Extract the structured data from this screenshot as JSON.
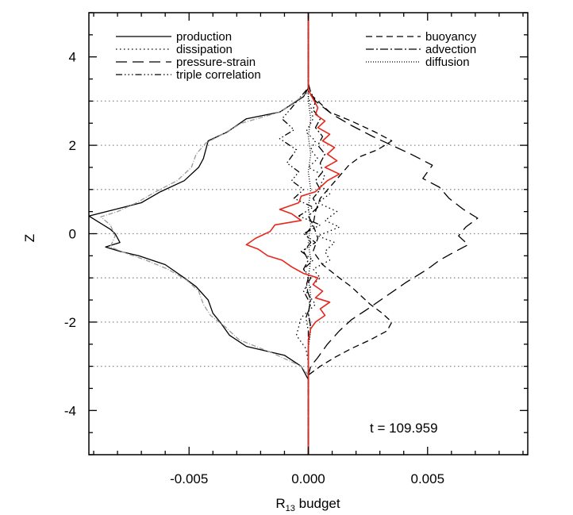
{
  "chart_data": {
    "type": "line",
    "xlabel": "R",
    "xlabel_sub": "13",
    "xlabel_rest": " budget",
    "ylabel": "Z",
    "xlim": [
      -0.0092,
      0.0092
    ],
    "ylim": [
      -5,
      5
    ],
    "x_tick_labels": [
      {
        "value": -0.005,
        "label": "-0.005"
      },
      {
        "value": 0.0,
        "label": "0.000"
      },
      {
        "value": 0.005,
        "label": "0.005"
      }
    ],
    "y_tick_labels": [
      {
        "value": -4,
        "label": "-4"
      },
      {
        "value": -2,
        "label": "-2"
      },
      {
        "value": 0,
        "label": "0"
      },
      {
        "value": 2,
        "label": "2"
      },
      {
        "value": 4,
        "label": "4"
      }
    ],
    "hlines": [
      -3,
      -2,
      -1,
      0,
      1,
      2,
      3
    ],
    "annotation": "t = 109.959",
    "legend_left": [
      "production",
      "dissipation",
      "pressure-strain",
      "triple correlation"
    ],
    "legend_right": [
      "buoyancy",
      "advection",
      "diffusion"
    ],
    "series": [
      {
        "name": "production",
        "color": "#000000",
        "dash": "solid",
        "points": [
          [
            0,
            5
          ],
          [
            0,
            3.3
          ],
          [
            -0.0002,
            3.1
          ],
          [
            -0.0012,
            2.75
          ],
          [
            -0.0026,
            2.6
          ],
          [
            -0.0034,
            2.3
          ],
          [
            -0.0042,
            2.1
          ],
          [
            -0.0043,
            1.9
          ],
          [
            -0.0044,
            1.7
          ],
          [
            -0.0046,
            1.5
          ],
          [
            -0.0052,
            1.2
          ],
          [
            -0.0062,
            0.95
          ],
          [
            -0.007,
            0.7
          ],
          [
            -0.0081,
            0.55
          ],
          [
            -0.0092,
            0.4
          ],
          [
            -0.0089,
            0.3
          ],
          [
            -0.0083,
            0.1
          ],
          [
            -0.0081,
            0.0
          ],
          [
            -0.0079,
            -0.2
          ],
          [
            -0.0085,
            -0.3
          ],
          [
            -0.0079,
            -0.4
          ],
          [
            -0.0071,
            -0.5
          ],
          [
            -0.006,
            -0.7
          ],
          [
            -0.0052,
            -1.0
          ],
          [
            -0.0047,
            -1.2
          ],
          [
            -0.0042,
            -1.5
          ],
          [
            -0.004,
            -1.8
          ],
          [
            -0.0037,
            -2.0
          ],
          [
            -0.0033,
            -2.3
          ],
          [
            -0.0026,
            -2.55
          ],
          [
            -0.001,
            -2.75
          ],
          [
            -0.0003,
            -3.0
          ],
          [
            0,
            -3.3
          ],
          [
            0,
            -5
          ]
        ]
      },
      {
        "name": "dissipation",
        "color": "#000000",
        "dash": "1.5,3.5",
        "points": [
          [
            0,
            5
          ],
          [
            0,
            3.1
          ],
          [
            0.0001,
            2.9
          ],
          [
            0.0002,
            2.6
          ],
          [
            -0.0001,
            2.3
          ],
          [
            0.0003,
            2.1
          ],
          [
            0.0001,
            1.9
          ],
          [
            0.0004,
            1.7
          ],
          [
            0,
            1.5
          ],
          [
            0.0007,
            1.3
          ],
          [
            0.0005,
            1.1
          ],
          [
            0.0009,
            0.9
          ],
          [
            0.0004,
            0.7
          ],
          [
            0.0012,
            0.5
          ],
          [
            0.0007,
            0.3
          ],
          [
            0.0013,
            0.15
          ],
          [
            0.0004,
            -0.05
          ],
          [
            0.0011,
            -0.2
          ],
          [
            0.0007,
            -0.4
          ],
          [
            0.0009,
            -0.6
          ],
          [
            0.0002,
            -0.8
          ],
          [
            0.0005,
            -1.0
          ],
          [
            -0.0001,
            -1.3
          ],
          [
            0.0003,
            -1.6
          ],
          [
            -0.0003,
            -1.9
          ],
          [
            -0.0004,
            -2.1
          ],
          [
            -0.0005,
            -2.3
          ],
          [
            -0.0001,
            -2.6
          ],
          [
            0,
            -2.9
          ],
          [
            0,
            -3.1
          ],
          [
            0,
            -5
          ]
        ]
      },
      {
        "name": "pressure-strain",
        "color": "#000000",
        "dash": "14,7",
        "points": [
          [
            0,
            5
          ],
          [
            0,
            3.2
          ],
          [
            0.0003,
            3.0
          ],
          [
            0.001,
            2.7
          ],
          [
            0.0018,
            2.45
          ],
          [
            0.0027,
            2.2
          ],
          [
            0.0035,
            2.0
          ],
          [
            0.0043,
            1.8
          ],
          [
            0.0052,
            1.55
          ],
          [
            0.0048,
            1.25
          ],
          [
            0.0055,
            1.05
          ],
          [
            0.0059,
            0.8
          ],
          [
            0.0065,
            0.55
          ],
          [
            0.0071,
            0.35
          ],
          [
            0.0066,
            0.15
          ],
          [
            0.0063,
            -0.05
          ],
          [
            0.0067,
            -0.25
          ],
          [
            0.006,
            -0.45
          ],
          [
            0.0055,
            -0.6
          ],
          [
            0.005,
            -0.8
          ],
          [
            0.0041,
            -1.1
          ],
          [
            0.0033,
            -1.4
          ],
          [
            0.0025,
            -1.7
          ],
          [
            0.0018,
            -1.95
          ],
          [
            0.0013,
            -2.2
          ],
          [
            0.0008,
            -2.5
          ],
          [
            0.0004,
            -2.8
          ],
          [
            0.0001,
            -3.0
          ],
          [
            0,
            -3.2
          ],
          [
            0,
            -5
          ]
        ]
      },
      {
        "name": "triple correlation",
        "color": "#000000",
        "dash": "8,3,1.5,3,1.5,3,1.5,3",
        "points": [
          [
            0,
            5
          ],
          [
            0,
            3.3
          ],
          [
            -0.0004,
            3.05
          ],
          [
            -0.0007,
            2.85
          ],
          [
            -0.0011,
            2.6
          ],
          [
            -0.0006,
            2.35
          ],
          [
            -0.0012,
            2.15
          ],
          [
            -0.0005,
            1.9
          ],
          [
            -0.0009,
            1.6
          ],
          [
            -0.0004,
            1.4
          ],
          [
            -0.0007,
            1.2
          ],
          [
            -0.0002,
            1.0
          ],
          [
            -0.0006,
            0.8
          ],
          [
            0.0002,
            0.6
          ],
          [
            -0.0004,
            0.4
          ],
          [
            0.0005,
            0.2
          ],
          [
            -0.0002,
            0.0
          ],
          [
            0.0003,
            -0.2
          ],
          [
            -0.0003,
            -0.4
          ],
          [
            0.0002,
            -0.6
          ],
          [
            -0.0002,
            -0.8
          ],
          [
            0.0001,
            -1.0
          ],
          [
            -0.0002,
            -1.3
          ],
          [
            0.0001,
            -1.6
          ],
          [
            -0.0001,
            -1.9
          ],
          [
            0,
            -2.2
          ],
          [
            0,
            -2.6
          ],
          [
            0,
            -3.0
          ],
          [
            0,
            -5
          ]
        ]
      },
      {
        "name": "buoyancy",
        "color": "#000000",
        "dash": "8,5",
        "points": [
          [
            0,
            5
          ],
          [
            0,
            3.2
          ],
          [
            0.0004,
            3.0
          ],
          [
            0.0009,
            2.75
          ],
          [
            0.0018,
            2.55
          ],
          [
            0.0028,
            2.3
          ],
          [
            0.0035,
            2.1
          ],
          [
            0.0029,
            1.9
          ],
          [
            0.0022,
            1.75
          ],
          [
            0.0017,
            1.55
          ],
          [
            0.0013,
            1.3
          ],
          [
            0.0009,
            1.05
          ],
          [
            0.0005,
            0.8
          ],
          [
            0.0003,
            0.5
          ],
          [
            0.0002,
            0.2
          ],
          [
            0.0004,
            -0.1
          ],
          [
            0.0002,
            -0.4
          ],
          [
            0.0006,
            -0.7
          ],
          [
            0.0013,
            -1.0
          ],
          [
            0.0018,
            -1.2
          ],
          [
            0.0022,
            -1.4
          ],
          [
            0.0026,
            -1.6
          ],
          [
            0.0031,
            -1.8
          ],
          [
            0.0035,
            -2.0
          ],
          [
            0.0033,
            -2.2
          ],
          [
            0.0026,
            -2.4
          ],
          [
            0.0018,
            -2.6
          ],
          [
            0.0011,
            -2.8
          ],
          [
            0.0005,
            -3.0
          ],
          [
            0,
            -3.2
          ],
          [
            0,
            -5
          ]
        ]
      },
      {
        "name": "advection",
        "color": "#000000",
        "dash": "10,3,2,3",
        "points": [
          [
            0,
            5
          ],
          [
            0,
            3.4
          ],
          [
            0.0001,
            3.2
          ],
          [
            0.0003,
            3.0
          ],
          [
            0.0002,
            2.8
          ],
          [
            0.0005,
            2.6
          ],
          [
            0.0003,
            2.4
          ],
          [
            0.0006,
            2.2
          ],
          [
            0.0004,
            2.0
          ],
          [
            0.0007,
            1.8
          ],
          [
            0.0005,
            1.6
          ],
          [
            0.0006,
            1.4
          ],
          [
            0.0003,
            1.2
          ],
          [
            0.0005,
            1.0
          ],
          [
            0.0002,
            0.8
          ],
          [
            0.0004,
            0.6
          ],
          [
            0,
            0.4
          ],
          [
            0.0002,
            0.2
          ],
          [
            -0.0001,
            0
          ],
          [
            0.0001,
            -0.2
          ],
          [
            -0.0002,
            -0.4
          ],
          [
            0,
            -0.6
          ],
          [
            -0.0002,
            -0.8
          ],
          [
            0,
            -1.0
          ],
          [
            -0.0001,
            -1.2
          ],
          [
            0.0001,
            -1.5
          ],
          [
            0,
            -1.8
          ],
          [
            0.0001,
            -2.1
          ],
          [
            0,
            -2.5
          ],
          [
            0,
            -2.9
          ],
          [
            0,
            -3.3
          ],
          [
            0,
            -5
          ]
        ]
      },
      {
        "name": "diffusion",
        "color": "#000000",
        "dash": "1,2",
        "points": [
          [
            0,
            5
          ],
          [
            0,
            3.3
          ],
          [
            0,
            3.0
          ],
          [
            0.0001,
            2.6
          ],
          [
            0,
            2.2
          ],
          [
            0.0001,
            1.8
          ],
          [
            0,
            1.4
          ],
          [
            0.0001,
            1.0
          ],
          [
            0,
            0.6
          ],
          [
            0.0001,
            0.2
          ],
          [
            0,
            -0.2
          ],
          [
            0.0001,
            -0.6
          ],
          [
            0,
            -1.0
          ],
          [
            0.0001,
            -1.4
          ],
          [
            0,
            -1.8
          ],
          [
            0.0001,
            -2.2
          ],
          [
            0,
            -2.6
          ],
          [
            0,
            -3.0
          ],
          [
            0,
            -3.3
          ],
          [
            0,
            -5
          ]
        ]
      },
      {
        "name": "",
        "color": "#999999",
        "dash": "6,2,1,2",
        "points": [
          [
            0,
            3.2
          ],
          [
            -0.0012,
            2.75
          ],
          [
            -0.0028,
            2.5
          ],
          [
            -0.0036,
            2.25
          ],
          [
            -0.0043,
            2.05
          ],
          [
            -0.0047,
            1.8
          ],
          [
            -0.0049,
            1.5
          ],
          [
            -0.0055,
            1.2
          ],
          [
            -0.0064,
            0.95
          ],
          [
            -0.0072,
            0.7
          ],
          [
            -0.008,
            0.5
          ],
          [
            -0.0087,
            0.38
          ],
          [
            -0.0083,
            0.2
          ],
          [
            -0.0081,
            -0.05
          ],
          [
            -0.0083,
            -0.3
          ],
          [
            -0.0076,
            -0.45
          ],
          [
            -0.0068,
            -0.6
          ],
          [
            -0.0059,
            -0.8
          ],
          [
            -0.0051,
            -1.05
          ],
          [
            -0.0046,
            -1.3
          ],
          [
            -0.0044,
            -1.6
          ],
          [
            -0.0041,
            -1.85
          ],
          [
            -0.0035,
            -2.1
          ],
          [
            -0.0029,
            -2.4
          ],
          [
            -0.0015,
            -2.7
          ],
          [
            -0.0003,
            -3.0
          ],
          [
            0,
            -3.2
          ]
        ]
      },
      {
        "name": "",
        "color": "#e8261c",
        "dash": "solid",
        "points": [
          [
            0,
            5
          ],
          [
            0,
            3.25
          ],
          [
            0.0002,
            3.05
          ],
          [
            0.0004,
            2.85
          ],
          [
            0.0003,
            2.7
          ],
          [
            0.0007,
            2.55
          ],
          [
            0.0004,
            2.4
          ],
          [
            0.0009,
            2.25
          ],
          [
            0.0006,
            2.1
          ],
          [
            0.0011,
            1.95
          ],
          [
            0.0008,
            1.8
          ],
          [
            0.0012,
            1.65
          ],
          [
            0.0007,
            1.5
          ],
          [
            0.0013,
            1.35
          ],
          [
            0.0008,
            1.2
          ],
          [
            0.0005,
            1.05
          ],
          [
            0.0003,
            0.95
          ],
          [
            -0.0003,
            0.85
          ],
          [
            -0.0004,
            0.7
          ],
          [
            -0.0012,
            0.55
          ],
          [
            -0.0007,
            0.45
          ],
          [
            -0.0003,
            0.3
          ],
          [
            -0.0014,
            0.2
          ],
          [
            -0.0016,
            0.05
          ],
          [
            -0.0022,
            -0.1
          ],
          [
            -0.0026,
            -0.25
          ],
          [
            -0.0021,
            -0.35
          ],
          [
            -0.0017,
            -0.5
          ],
          [
            -0.0011,
            -0.6
          ],
          [
            -0.0007,
            -0.75
          ],
          [
            -0.0002,
            -0.9
          ],
          [
            0.0004,
            -1.0
          ],
          [
            0.0002,
            -1.15
          ],
          [
            0.0006,
            -1.3
          ],
          [
            0.0003,
            -1.45
          ],
          [
            0.0009,
            -1.55
          ],
          [
            0.0005,
            -1.7
          ],
          [
            0.0007,
            -1.85
          ],
          [
            0.0003,
            -2.0
          ],
          [
            0.0001,
            -2.15
          ],
          [
            0,
            -2.4
          ],
          [
            0,
            -3.0
          ],
          [
            0,
            -5
          ]
        ]
      }
    ]
  }
}
